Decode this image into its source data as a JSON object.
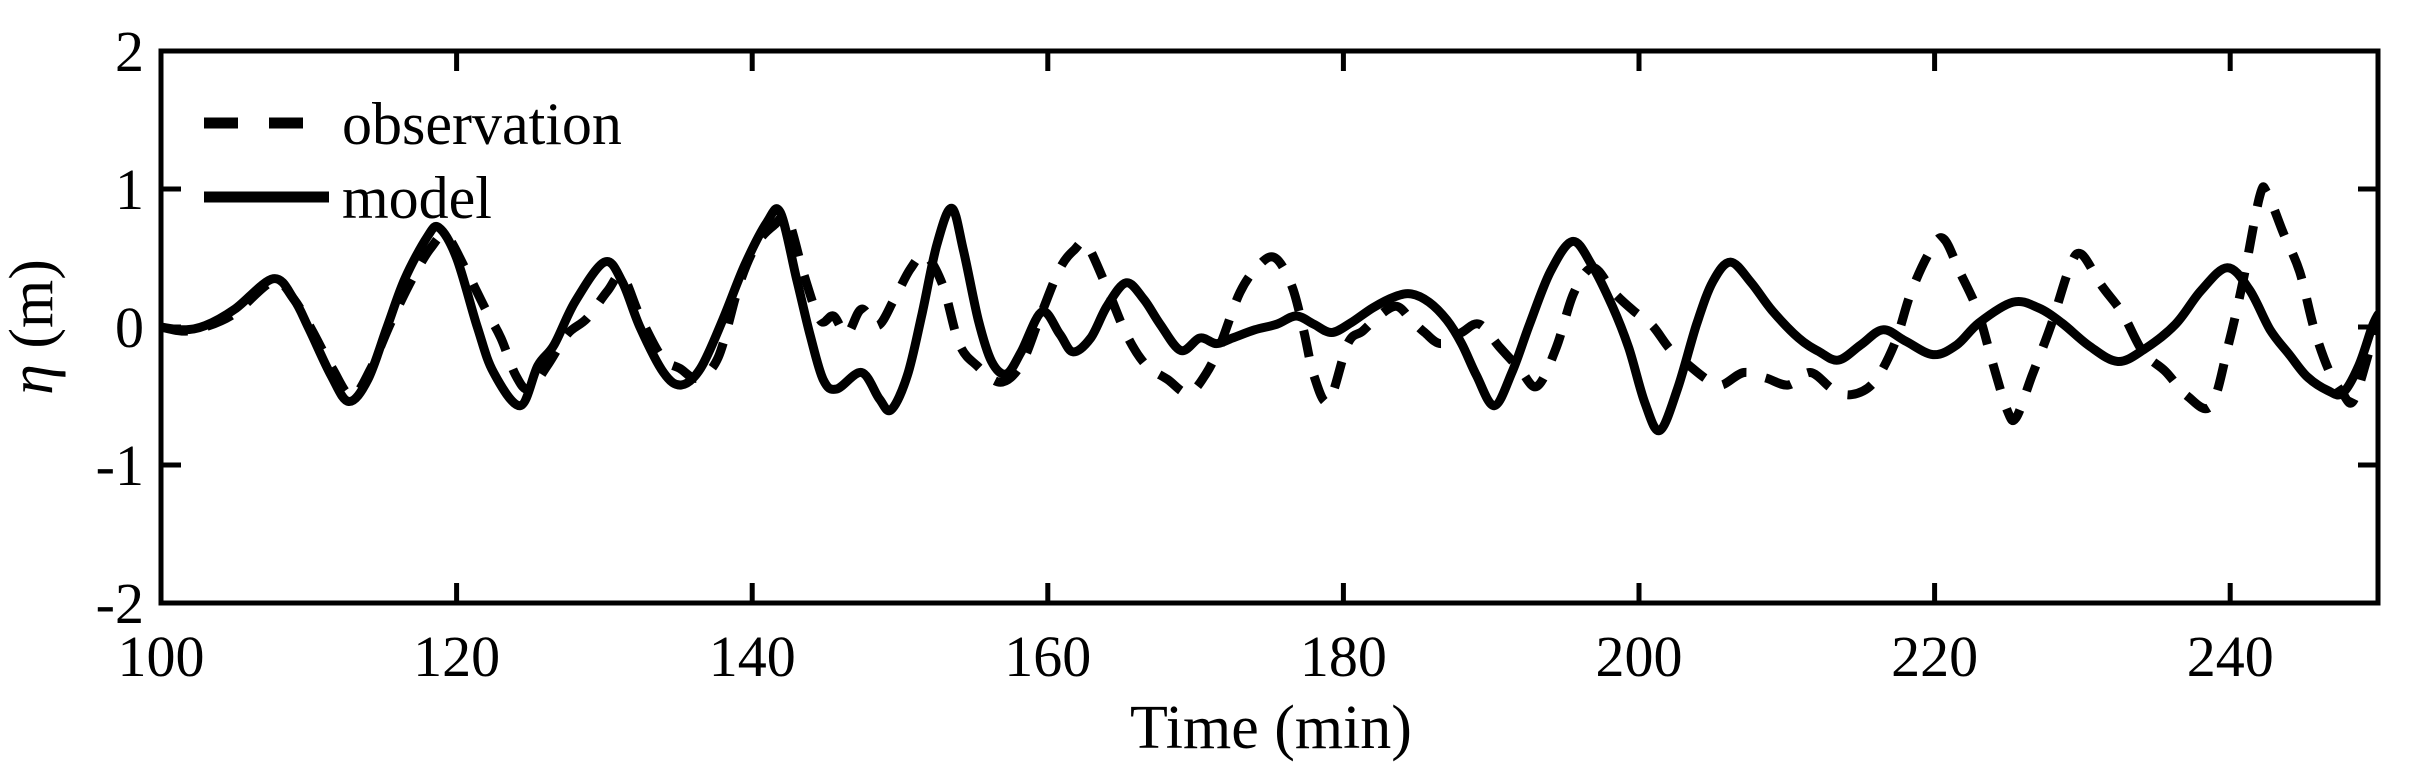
{
  "chart_data": {
    "type": "line",
    "title": "",
    "xlabel": "Time (min)",
    "ylabel": "η (m)",
    "ylabel_eta": "η",
    "ylabel_unit": " (m)",
    "xlim": [
      100,
      250
    ],
    "ylim": [
      -2,
      2
    ],
    "x_ticks": [
      100,
      120,
      140,
      160,
      180,
      200,
      220,
      240
    ],
    "y_ticks": [
      -2,
      -1,
      0,
      1,
      2
    ],
    "grid": "off",
    "box": "on",
    "tick_direction": "in",
    "legend": {
      "position": "top-left",
      "border": "none",
      "entries": [
        {
          "label": "observation",
          "style": "dashed"
        },
        {
          "label": "model",
          "style": "solid"
        }
      ]
    },
    "series": [
      {
        "name": "observation",
        "style": "dashed",
        "color": "#000000",
        "points": [
          [
            100,
            0
          ],
          [
            101.5,
            -0.03
          ],
          [
            103,
            0
          ],
          [
            105,
            0.1
          ],
          [
            107.6,
            0.33
          ],
          [
            109,
            0.2
          ],
          [
            110.2,
            -0.02
          ],
          [
            111.6,
            -0.3
          ],
          [
            112.9,
            -0.5
          ],
          [
            114.2,
            -0.3
          ],
          [
            115.5,
            0.02
          ],
          [
            117,
            0.35
          ],
          [
            118.3,
            0.58
          ],
          [
            119.3,
            0.66
          ],
          [
            120.6,
            0.42
          ],
          [
            122,
            0.12
          ],
          [
            123,
            -0.08
          ],
          [
            124,
            -0.35
          ],
          [
            124.9,
            -0.45
          ],
          [
            126.2,
            -0.27
          ],
          [
            127.5,
            -0.05
          ],
          [
            128.8,
            0.06
          ],
          [
            130.2,
            0.26
          ],
          [
            131.2,
            0.37
          ],
          [
            132.4,
            0.08
          ],
          [
            133.9,
            -0.22
          ],
          [
            135.1,
            -0.3
          ],
          [
            136.3,
            -0.37
          ],
          [
            137.7,
            -0.22
          ],
          [
            139.1,
            0.3
          ],
          [
            140.3,
            0.6
          ],
          [
            141.5,
            0.74
          ],
          [
            142.4,
            0.78
          ],
          [
            143.5,
            0.38
          ],
          [
            144.6,
            0.05
          ],
          [
            145.5,
            0.08
          ],
          [
            146.4,
            -0.05
          ],
          [
            147.4,
            0.13
          ],
          [
            148.5,
            0.01
          ],
          [
            149.6,
            0.2
          ],
          [
            150.7,
            0.42
          ],
          [
            151.7,
            0.52
          ],
          [
            152.9,
            0.3
          ],
          [
            154,
            -0.12
          ],
          [
            155.2,
            -0.28
          ],
          [
            156.8,
            -0.4
          ],
          [
            158.2,
            -0.27
          ],
          [
            159.5,
            0.08
          ],
          [
            160.8,
            0.42
          ],
          [
            161.8,
            0.56
          ],
          [
            162.6,
            0.6
          ],
          [
            163.9,
            0.31
          ],
          [
            165.3,
            -0.05
          ],
          [
            166.6,
            -0.27
          ],
          [
            168.1,
            -0.38
          ],
          [
            169.5,
            -0.48
          ],
          [
            170.7,
            -0.34
          ],
          [
            171.7,
            -0.12
          ],
          [
            173,
            0.25
          ],
          [
            174.3,
            0.45
          ],
          [
            175.4,
            0.5
          ],
          [
            176.5,
            0.3
          ],
          [
            177.3,
            -0.02
          ],
          [
            178,
            -0.35
          ],
          [
            179,
            -0.54
          ],
          [
            180.3,
            -0.12
          ],
          [
            181.3,
            -0.03
          ],
          [
            182.4,
            0.08
          ],
          [
            183.6,
            0.15
          ],
          [
            184.6,
            0.05
          ],
          [
            185.5,
            -0.04
          ],
          [
            186.6,
            -0.12
          ],
          [
            188,
            -0.04
          ],
          [
            189.2,
            0.02
          ],
          [
            190.6,
            -0.15
          ],
          [
            191.9,
            -0.3
          ],
          [
            193.1,
            -0.43
          ],
          [
            194.4,
            -0.15
          ],
          [
            195.6,
            0.25
          ],
          [
            196.9,
            0.43
          ],
          [
            198.3,
            0.25
          ],
          [
            199.6,
            0.12
          ],
          [
            200.9,
            0.01
          ],
          [
            202.1,
            -0.16
          ],
          [
            203.4,
            -0.28
          ],
          [
            204.6,
            -0.38
          ],
          [
            205.6,
            -0.42
          ],
          [
            207.1,
            -0.33
          ],
          [
            208.6,
            -0.37
          ],
          [
            210.1,
            -0.42
          ],
          [
            211.6,
            -0.33
          ],
          [
            213.1,
            -0.45
          ],
          [
            214.4,
            -0.49
          ],
          [
            215.9,
            -0.4
          ],
          [
            217.3,
            -0.12
          ],
          [
            218.4,
            0.25
          ],
          [
            219.7,
            0.55
          ],
          [
            220.6,
            0.64
          ],
          [
            221.7,
            0.4
          ],
          [
            222.9,
            0.12
          ],
          [
            223.9,
            -0.25
          ],
          [
            224.9,
            -0.6
          ],
          [
            225.5,
            -0.66
          ],
          [
            226.6,
            -0.35
          ],
          [
            227.9,
            0.02
          ],
          [
            229.1,
            0.42
          ],
          [
            229.9,
            0.53
          ],
          [
            231.3,
            0.3
          ],
          [
            232.7,
            0.1
          ],
          [
            234.1,
            -0.18
          ],
          [
            235.6,
            -0.32
          ],
          [
            237.1,
            -0.5
          ],
          [
            238.7,
            -0.57
          ],
          [
            239.9,
            -0.12
          ],
          [
            240.9,
            0.35
          ],
          [
            242,
            0.95
          ],
          [
            242.5,
            0.97
          ],
          [
            243.6,
            0.68
          ],
          [
            244.7,
            0.4
          ],
          [
            245.7,
            -0.02
          ],
          [
            246.7,
            -0.32
          ],
          [
            247.6,
            -0.48
          ],
          [
            248.3,
            -0.54
          ],
          [
            249.2,
            -0.25
          ],
          [
            250,
            0.08
          ]
        ]
      },
      {
        "name": "model",
        "style": "solid",
        "color": "#000000",
        "points": [
          [
            100,
            0
          ],
          [
            101.5,
            -0.02
          ],
          [
            103,
            0.01
          ],
          [
            105,
            0.13
          ],
          [
            107.6,
            0.35
          ],
          [
            109,
            0.2
          ],
          [
            110,
            -0.01
          ],
          [
            111.5,
            -0.35
          ],
          [
            112.7,
            -0.54
          ],
          [
            114,
            -0.38
          ],
          [
            115.3,
            0
          ],
          [
            116.5,
            0.35
          ],
          [
            118,
            0.65
          ],
          [
            118.8,
            0.72
          ],
          [
            120,
            0.5
          ],
          [
            121.4,
            0
          ],
          [
            122.5,
            -0.33
          ],
          [
            124.3,
            -0.57
          ],
          [
            125.5,
            -0.28
          ],
          [
            126.6,
            -0.13
          ],
          [
            128,
            0.18
          ],
          [
            130,
            0.47
          ],
          [
            131.2,
            0.33
          ],
          [
            132.4,
            0
          ],
          [
            134,
            -0.33
          ],
          [
            135.2,
            -0.42
          ],
          [
            136.5,
            -0.3
          ],
          [
            138,
            0.05
          ],
          [
            139.5,
            0.45
          ],
          [
            141,
            0.76
          ],
          [
            141.9,
            0.83
          ],
          [
            143,
            0.35
          ],
          [
            143.9,
            -0.05
          ],
          [
            144.8,
            -0.38
          ],
          [
            145.7,
            -0.45
          ],
          [
            147.4,
            -0.33
          ],
          [
            148.6,
            -0.52
          ],
          [
            149.4,
            -0.6
          ],
          [
            150.5,
            -0.35
          ],
          [
            151.5,
            0.1
          ],
          [
            152.5,
            0.6
          ],
          [
            153.5,
            0.86
          ],
          [
            154.3,
            0.55
          ],
          [
            155.3,
            0.05
          ],
          [
            156.2,
            -0.25
          ],
          [
            157.2,
            -0.34
          ],
          [
            158.2,
            -0.18
          ],
          [
            159.6,
            0.11
          ],
          [
            160.8,
            -0.05
          ],
          [
            161.7,
            -0.18
          ],
          [
            162.9,
            -0.08
          ],
          [
            164,
            0.15
          ],
          [
            165.3,
            0.32
          ],
          [
            166.5,
            0.2
          ],
          [
            167.6,
            0.02
          ],
          [
            169,
            -0.17
          ],
          [
            170.3,
            -0.08
          ],
          [
            171.4,
            -0.12
          ],
          [
            172.5,
            -0.08
          ],
          [
            174,
            -0.02
          ],
          [
            175.5,
            0.02
          ],
          [
            176.8,
            0.08
          ],
          [
            178,
            0.02
          ],
          [
            179.2,
            -0.04
          ],
          [
            180.5,
            0.03
          ],
          [
            182,
            0.14
          ],
          [
            183.5,
            0.22
          ],
          [
            184.6,
            0.24
          ],
          [
            185.8,
            0.18
          ],
          [
            187,
            0.05
          ],
          [
            188,
            -0.12
          ],
          [
            189,
            -0.35
          ],
          [
            190.2,
            -0.57
          ],
          [
            191.4,
            -0.33
          ],
          [
            192.6,
            0.02
          ],
          [
            194,
            0.4
          ],
          [
            195.5,
            0.62
          ],
          [
            196.8,
            0.45
          ],
          [
            198.2,
            0.15
          ],
          [
            199.3,
            -0.15
          ],
          [
            200.4,
            -0.55
          ],
          [
            201.4,
            -0.75
          ],
          [
            202.6,
            -0.45
          ],
          [
            203.9,
            0.02
          ],
          [
            205,
            0.33
          ],
          [
            206.2,
            0.47
          ],
          [
            207.6,
            0.32
          ],
          [
            209,
            0.12
          ],
          [
            210.8,
            -0.08
          ],
          [
            212.2,
            -0.18
          ],
          [
            213.5,
            -0.24
          ],
          [
            215,
            -0.13
          ],
          [
            216.5,
            -0.02
          ],
          [
            218,
            -0.1
          ],
          [
            219.9,
            -0.2
          ],
          [
            221.5,
            -0.13
          ],
          [
            223,
            0.03
          ],
          [
            225.3,
            0.18
          ],
          [
            227,
            0.14
          ],
          [
            228.6,
            0.03
          ],
          [
            230.5,
            -0.14
          ],
          [
            232.4,
            -0.25
          ],
          [
            234.2,
            -0.16
          ],
          [
            236.3,
            0.02
          ],
          [
            238,
            0.26
          ],
          [
            239.8,
            0.43
          ],
          [
            241.3,
            0.27
          ],
          [
            242.7,
            -0.02
          ],
          [
            244,
            -0.2
          ],
          [
            245.2,
            -0.36
          ],
          [
            246.6,
            -0.46
          ],
          [
            247.6,
            -0.48
          ],
          [
            248.7,
            -0.28
          ],
          [
            249.6,
            0
          ],
          [
            250,
            0.09
          ]
        ]
      }
    ]
  },
  "colors": {
    "foreground": "#000000",
    "background": "#ffffff"
  }
}
